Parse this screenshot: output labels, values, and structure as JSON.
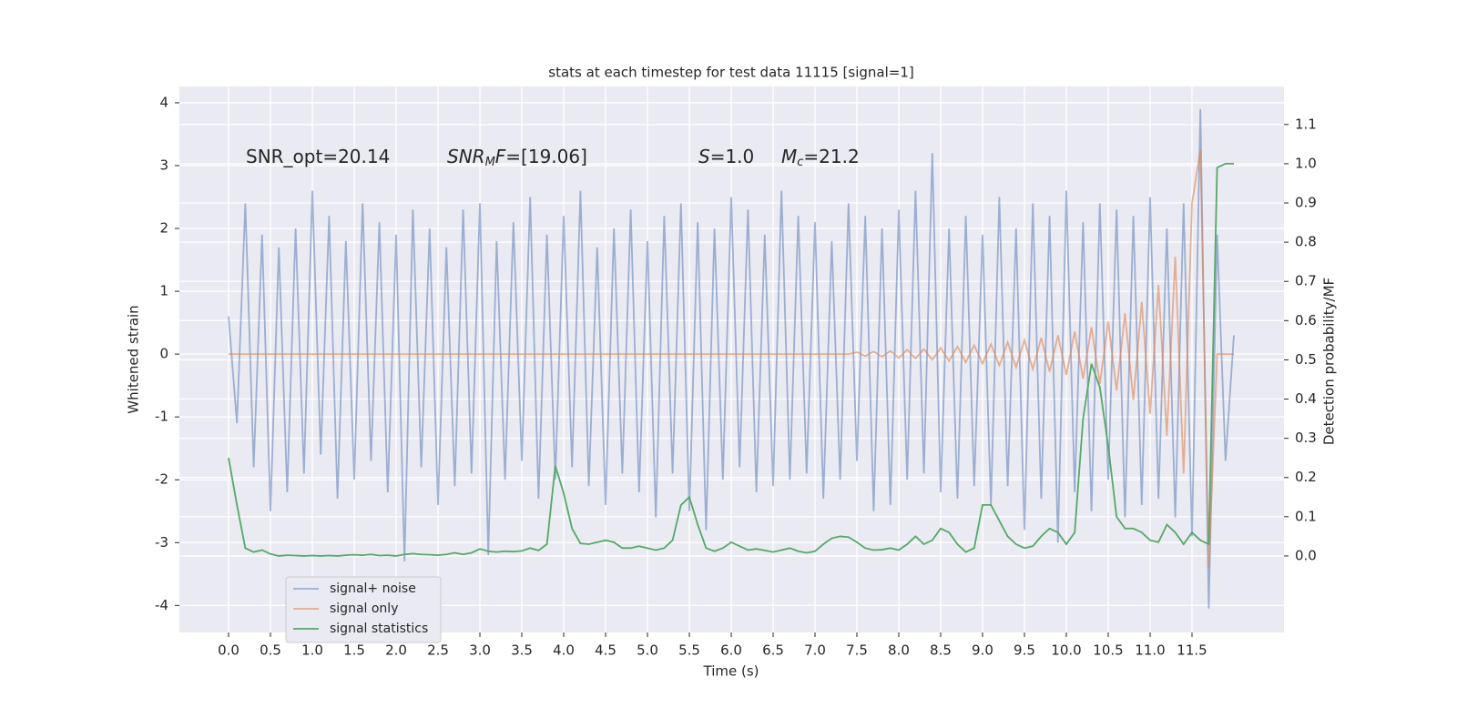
{
  "chart_data": {
    "type": "line",
    "title": "stats at each timestep for test data 11115 [signal=1]",
    "x_label": "Time (s)",
    "y_label": "Whitened strain",
    "y2_label": "Detection probability/MF",
    "annotations": [
      {
        "parts": [
          {
            "text": "SNR_opt=20.14"
          }
        ]
      },
      {
        "parts": [
          {
            "text": "SNR",
            "italic": true
          },
          {
            "text": "M",
            "italic": true,
            "sub": true
          },
          {
            "text": "F",
            "italic": true
          },
          {
            "text": "=[19.06]"
          }
        ]
      },
      {
        "parts": [
          {
            "text": "S",
            "italic": true
          },
          {
            "text": "=1.0"
          }
        ]
      },
      {
        "parts": [
          {
            "text": "M",
            "italic": true
          },
          {
            "text": "c",
            "italic": true,
            "sub": true
          },
          {
            "text": "=21.2"
          }
        ]
      }
    ],
    "x": [
      0,
      0.1,
      0.2,
      0.3,
      0.4,
      0.5,
      0.6,
      0.7,
      0.8,
      0.9,
      1.0,
      1.1,
      1.2,
      1.3,
      1.4,
      1.5,
      1.6,
      1.7,
      1.8,
      1.9,
      2.0,
      2.1,
      2.2,
      2.3,
      2.4,
      2.5,
      2.6,
      2.7,
      2.8,
      2.9,
      3.0,
      3.1,
      3.2,
      3.3,
      3.4,
      3.5,
      3.6,
      3.7,
      3.8,
      3.9,
      4.0,
      4.1,
      4.2,
      4.3,
      4.4,
      4.5,
      4.6,
      4.7,
      4.8,
      4.9,
      5.0,
      5.1,
      5.2,
      5.3,
      5.4,
      5.5,
      5.6,
      5.7,
      5.8,
      5.9,
      6.0,
      6.1,
      6.2,
      6.3,
      6.4,
      6.5,
      6.6,
      6.7,
      6.8,
      6.9,
      7.0,
      7.1,
      7.2,
      7.3,
      7.4,
      7.5,
      7.6,
      7.7,
      7.8,
      7.9,
      8.0,
      8.1,
      8.2,
      8.3,
      8.4,
      8.5,
      8.6,
      8.7,
      8.8,
      8.9,
      9.0,
      9.1,
      9.2,
      9.3,
      9.4,
      9.5,
      9.6,
      9.7,
      9.8,
      9.9,
      10.0,
      10.1,
      10.2,
      10.3,
      10.4,
      10.5,
      10.6,
      10.7,
      10.8,
      10.9,
      11.0,
      11.1,
      11.2,
      11.3,
      11.4,
      11.5,
      11.6,
      11.7,
      11.8,
      11.9,
      12.0
    ],
    "series": [
      {
        "name": "signal+ noise",
        "color": "#4c72b0",
        "opacity": 0.5,
        "values": [
          0.6,
          -1.1,
          2.4,
          -1.8,
          1.9,
          -2.5,
          1.7,
          -2.2,
          2.0,
          -1.9,
          2.6,
          -1.6,
          2.2,
          -2.3,
          1.8,
          -2.0,
          2.4,
          -1.7,
          2.1,
          -2.2,
          1.9,
          -3.3,
          2.3,
          -1.8,
          2.0,
          -2.4,
          1.7,
          -2.1,
          2.3,
          -1.9,
          2.4,
          -3.2,
          1.8,
          -2.0,
          2.1,
          -1.7,
          2.5,
          -2.3,
          1.9,
          -2.0,
          2.2,
          -1.8,
          2.6,
          -2.1,
          1.7,
          -2.4,
          2.0,
          -1.9,
          2.3,
          -2.2,
          1.8,
          -2.6,
          2.2,
          -1.9,
          2.4,
          -2.5,
          2.1,
          -2.8,
          2.0,
          -2.0,
          2.5,
          -1.8,
          2.3,
          -2.2,
          1.9,
          -2.1,
          2.6,
          -2.0,
          2.2,
          -1.9,
          2.1,
          -2.3,
          1.8,
          -2.0,
          2.4,
          -1.7,
          2.2,
          -2.5,
          2.0,
          -2.4,
          2.3,
          -2.0,
          2.6,
          -1.9,
          3.2,
          -2.2,
          2.0,
          -2.3,
          2.2,
          -2.1,
          1.9,
          -2.4,
          2.5,
          -2.1,
          2.0,
          -2.8,
          2.4,
          -2.3,
          2.2,
          -3.0,
          2.6,
          -2.2,
          2.1,
          -2.5,
          2.4,
          -2.0,
          2.3,
          -2.6,
          2.2,
          -2.4,
          2.5,
          -2.3,
          2.0,
          -2.6,
          2.4,
          -2.9,
          3.9,
          -4.05,
          1.9,
          -1.7,
          0.3
        ]
      },
      {
        "name": "signal only",
        "color": "#dd8452",
        "opacity": 0.6,
        "values": [
          0,
          0,
          0,
          0,
          0,
          0,
          0,
          0,
          0,
          0,
          0,
          0,
          0,
          0,
          0,
          0,
          0,
          0,
          0,
          0,
          0,
          0,
          0,
          0,
          0,
          0,
          0,
          0,
          0,
          0,
          0,
          0,
          0,
          0,
          0,
          0,
          0,
          0,
          0,
          0,
          0,
          0,
          0,
          0,
          0,
          0,
          0,
          0,
          0,
          0,
          0,
          0,
          0,
          0,
          0,
          0,
          0,
          0,
          0,
          0,
          0,
          0,
          0,
          0,
          0,
          0,
          0,
          0,
          0,
          0,
          0,
          0,
          0,
          0,
          0,
          0.03,
          -0.03,
          0.04,
          -0.04,
          0.05,
          -0.06,
          0.07,
          -0.07,
          0.08,
          -0.09,
          0.1,
          -0.11,
          0.12,
          -0.13,
          0.14,
          -0.15,
          0.16,
          -0.18,
          0.19,
          -0.21,
          0.22,
          -0.24,
          0.26,
          -0.28,
          0.3,
          -0.33,
          0.36,
          -0.39,
          0.43,
          -0.47,
          0.52,
          -0.58,
          0.65,
          -0.73,
          0.83,
          -0.95,
          1.1,
          -1.3,
          1.55,
          -1.9,
          2.4,
          3.25,
          -3.4,
          0,
          0,
          0
        ]
      },
      {
        "name": "signal statistics",
        "color": "#55a868",
        "opacity": 1,
        "axis": "y2",
        "values": [
          0.25,
          0.13,
          0.02,
          0.01,
          0.015,
          0.005,
          0.0,
          0.002,
          0.001,
          0.0,
          0.001,
          0.0,
          0.001,
          0.0,
          0.002,
          0.003,
          0.002,
          0.004,
          0.001,
          0.002,
          0.0,
          0.004,
          0.006,
          0.004,
          0.003,
          0.002,
          0.004,
          0.008,
          0.004,
          0.008,
          0.018,
          0.012,
          0.01,
          0.012,
          0.011,
          0.013,
          0.02,
          0.014,
          0.03,
          0.23,
          0.16,
          0.07,
          0.032,
          0.03,
          0.035,
          0.04,
          0.035,
          0.02,
          0.02,
          0.025,
          0.02,
          0.015,
          0.02,
          0.04,
          0.13,
          0.15,
          0.08,
          0.02,
          0.012,
          0.02,
          0.035,
          0.025,
          0.015,
          0.018,
          0.014,
          0.01,
          0.015,
          0.02,
          0.012,
          0.008,
          0.012,
          0.03,
          0.045,
          0.05,
          0.048,
          0.035,
          0.02,
          0.015,
          0.016,
          0.02,
          0.015,
          0.03,
          0.05,
          0.03,
          0.04,
          0.07,
          0.06,
          0.03,
          0.01,
          0.02,
          0.13,
          0.13,
          0.09,
          0.05,
          0.03,
          0.02,
          0.025,
          0.05,
          0.07,
          0.06,
          0.03,
          0.06,
          0.35,
          0.49,
          0.43,
          0.28,
          0.1,
          0.07,
          0.07,
          0.06,
          0.04,
          0.035,
          0.08,
          0.06,
          0.03,
          0.06,
          0.04,
          0.03,
          0.99,
          1.0,
          1.0
        ]
      }
    ],
    "xlim": [
      -0.587,
      12.598
    ],
    "xticks": [
      {
        "value": 0,
        "label": "0.0"
      },
      0.5,
      {
        "value": 1,
        "label": "1.0"
      },
      1.5,
      {
        "value": 2,
        "label": "2.0"
      },
      2.5,
      {
        "value": 3,
        "label": "3.0"
      },
      3.5,
      {
        "value": 4,
        "label": "4.0"
      },
      4.5,
      {
        "value": 5,
        "label": "5.0"
      },
      5.5,
      {
        "value": 6,
        "label": "6.0"
      },
      6.5,
      {
        "value": 7,
        "label": "7.0"
      },
      7.5,
      {
        "value": 8,
        "label": "8.0"
      },
      8.5,
      {
        "value": 9,
        "label": "9.0"
      },
      9.5,
      {
        "value": 10,
        "label": "10.0"
      },
      10.5,
      {
        "value": 11,
        "label": "11.0"
      },
      11.5
    ],
    "ylim": [
      -4.43,
      4.26
    ],
    "yticks": [
      -4,
      -3,
      -2,
      -1,
      0,
      1,
      2,
      3,
      4
    ],
    "y2lim": [
      -0.195,
      1.197
    ],
    "y2ticks": [
      {
        "value": 0,
        "label": "0.0"
      },
      0.1,
      0.2,
      0.3,
      0.4,
      0.5,
      0.6,
      0.7,
      0.8,
      0.9,
      {
        "value": 1,
        "label": "1.0"
      },
      1.1
    ],
    "grid": true,
    "background": "#eaeaf2",
    "legend": "lower left"
  }
}
